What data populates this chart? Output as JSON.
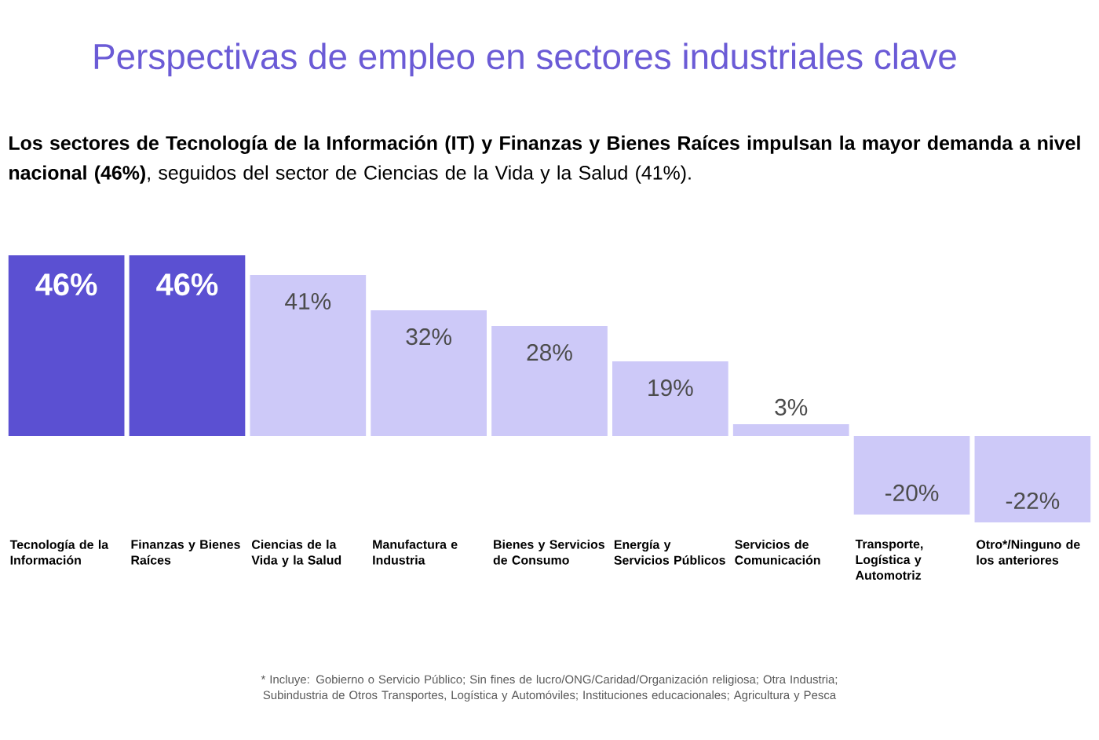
{
  "chart_data": {
    "type": "bar",
    "title": "Perspectivas de empleo en sectores industriales clave",
    "subtitle": "**Los sectores de Tecnología de la Información (IT) y Finanzas y Bienes Raíces impulsan la mayor demanda a nivel nacional (46%)**, seguidos del sector de Ciencias de la Vida y la Salud (41%).",
    "categories": [
      "Tecnología de la Información",
      "Finanzas y Bienes Raíces",
      "Ciencias de la Vida y la Salud",
      "Manufactura e Industria",
      "Bienes y Servicios de Consumo",
      "Energía y Servicios Públicos",
      "Servicios de Comunicación",
      "Transporte, Logística y Automotriz",
      "Otro*/Ninguno de los anteriores"
    ],
    "values": [
      46,
      46,
      41,
      32,
      28,
      19,
      3,
      -20,
      -22
    ],
    "value_labels": [
      "46%",
      "46%",
      "41%",
      "32%",
      "28%",
      "19%",
      "3%",
      "-20%",
      "-22%"
    ],
    "colors": [
      "#5b50d2",
      "#5b50d2",
      "#cdc9f8",
      "#cdc9f8",
      "#cdc9f8",
      "#cdc9f8",
      "#cdc9f8",
      "#cdc9f8",
      "#cdc9f8"
    ],
    "annotations": [
      "* Incluye: Gobierno o Servicio Público; Sin fines de lucro/ONG/Caridad/Organización religiosa; Otra Industria; Subindustria de Otros Transportes, Logística y Automóviles; Instituciones educacionales; Agricultura y Pesca"
    ]
  }
}
